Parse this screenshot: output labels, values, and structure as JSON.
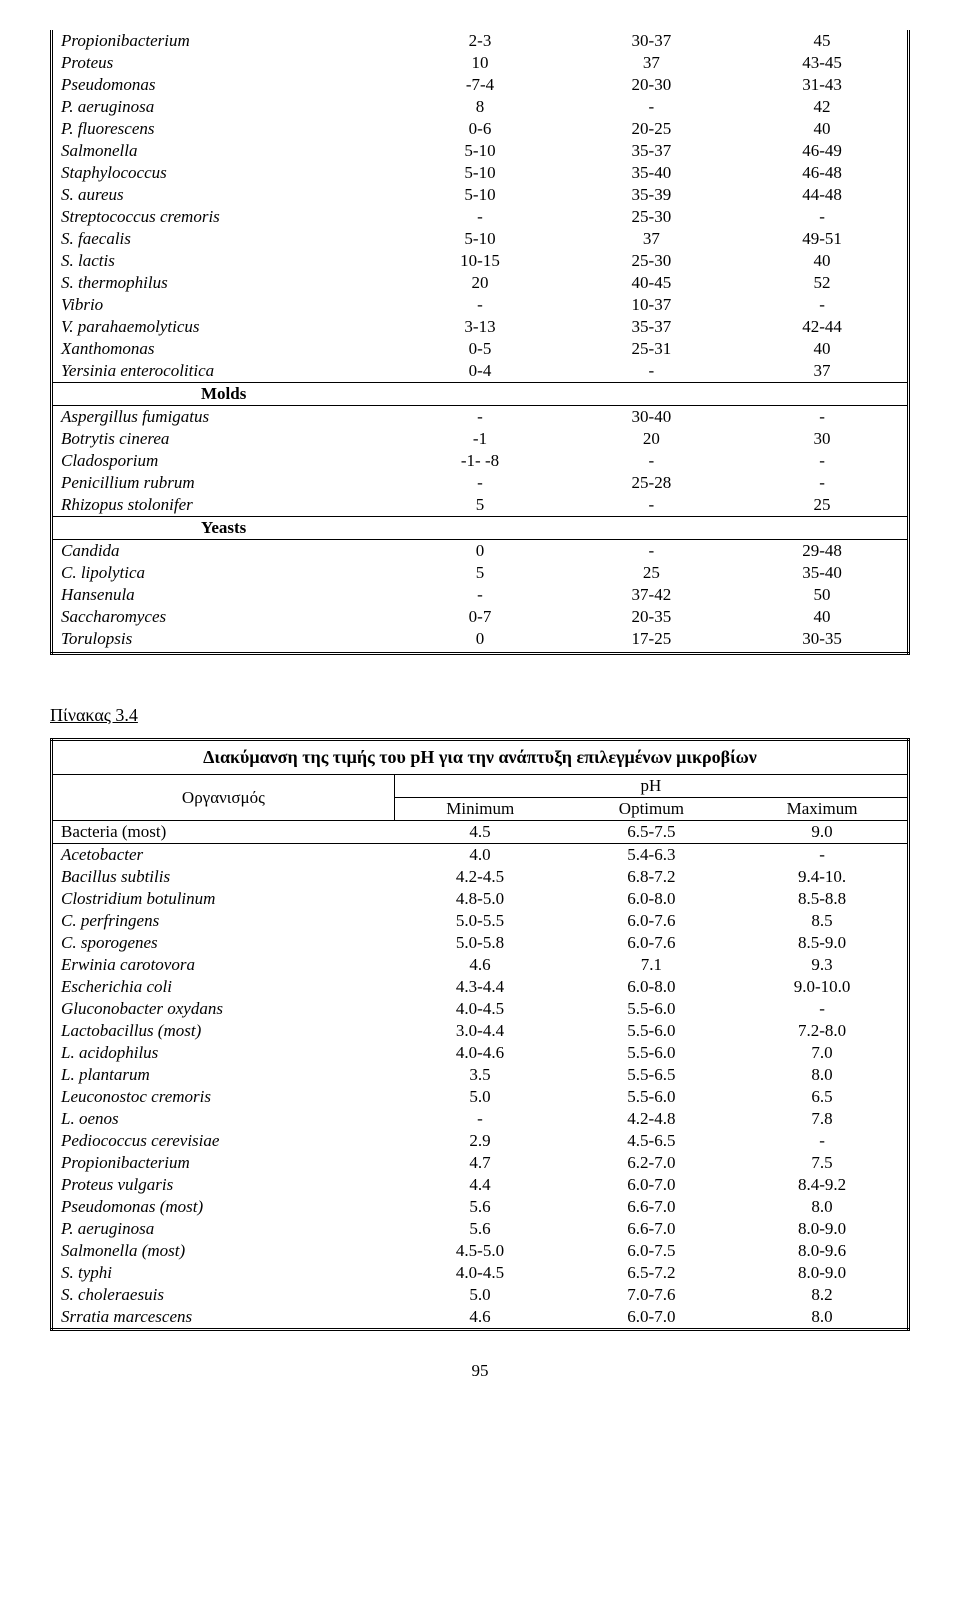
{
  "table1": {
    "rows_a": [
      {
        "name": "Propionibacterium",
        "c2": "2-3",
        "c3": "30-37",
        "c4": "45",
        "it": true
      },
      {
        "name": "Proteus",
        "c2": "10",
        "c3": "37",
        "c4": "43-45",
        "it": true
      },
      {
        "name": "Pseudomonas",
        "c2": "-7-4",
        "c3": "20-30",
        "c4": "31-43",
        "it": true
      },
      {
        "name": "P. aeruginosa",
        "c2": "8",
        "c3": "-",
        "c4": "42",
        "it": true
      },
      {
        "name": "P. fluorescens",
        "c2": "0-6",
        "c3": "20-25",
        "c4": "40",
        "it": true
      },
      {
        "name": "Salmonella",
        "c2": "5-10",
        "c3": "35-37",
        "c4": "46-49",
        "it": true
      },
      {
        "name": "Staphylococcus",
        "c2": "5-10",
        "c3": "35-40",
        "c4": "46-48",
        "it": true
      },
      {
        "name": "S. aureus",
        "c2": "5-10",
        "c3": "35-39",
        "c4": "44-48",
        "it": true
      },
      {
        "name": "Streptococcus cremoris",
        "c2": "-",
        "c3": "25-30",
        "c4": "-",
        "it": true
      },
      {
        "name": "S. faecalis",
        "c2": "5-10",
        "c3": "37",
        "c4": "49-51",
        "it": true
      },
      {
        "name": "S. lactis",
        "c2": "10-15",
        "c3": "25-30",
        "c4": "40",
        "it": true
      },
      {
        "name": "S. thermophilus",
        "c2": "20",
        "c3": "40-45",
        "c4": "52",
        "it": true
      },
      {
        "name": "Vibrio",
        "c2": "-",
        "c3": "10-37",
        "c4": "-",
        "it": true
      },
      {
        "name": "V. parahaemolyticus",
        "c2": "3-13",
        "c3": "35-37",
        "c4": "42-44",
        "it": true
      },
      {
        "name": "Xanthomonas",
        "c2": "0-5",
        "c3": "25-31",
        "c4": "40",
        "it": true
      },
      {
        "name": "Yersinia enterocolitica",
        "c2": "0-4",
        "c3": "-",
        "c4": "37",
        "it": true
      }
    ],
    "sec1": "Molds",
    "rows_b": [
      {
        "name": "Aspergillus fumigatus",
        "c2": "-",
        "c3": "30-40",
        "c4": "-",
        "it": true
      },
      {
        "name": "Botrytis cinerea",
        "c2": "-1",
        "c3": "20",
        "c4": "30",
        "it": true
      },
      {
        "name": "Cladosporium",
        "c2": "-1- -8",
        "c3": "-",
        "c4": "-",
        "it": true
      },
      {
        "name": "Penicillium rubrum",
        "c2": "-",
        "c3": "25-28",
        "c4": "-",
        "it": true
      },
      {
        "name": "Rhizopus stolonifer",
        "c2": "5",
        "c3": "-",
        "c4": "25",
        "it": true
      }
    ],
    "sec2": "Yeasts",
    "rows_c": [
      {
        "name": "Candida",
        "c2": "0",
        "c3": "-",
        "c4": "29-48",
        "it": true
      },
      {
        "name": "C. lipolytica",
        "c2": "5",
        "c3": "25",
        "c4": "35-40",
        "it": true
      },
      {
        "name": "Hansenula",
        "c2": "-",
        "c3": "37-42",
        "c4": "50",
        "it": true
      },
      {
        "name": "Saccharomyces",
        "c2": "0-7",
        "c3": "20-35",
        "c4": "40",
        "it": true
      },
      {
        "name": "Torulopsis",
        "c2": "0",
        "c3": "17-25",
        "c4": "30-35",
        "it": true
      }
    ]
  },
  "caption": "Πίνακας 3.4",
  "table2": {
    "title": "Διακύμανση της τιμής του pH για την ανάπτυξη επιλεγμένων μικροβίων",
    "org_label": "Οργανισμός",
    "ph_label": "pH",
    "cols": {
      "min": "Minimum",
      "opt": "Optimum",
      "max": "Maximum"
    },
    "first": {
      "name": "Bacteria (most)",
      "min": "4.5",
      "opt": "6.5-7.5",
      "max": "9.0",
      "it": false
    },
    "rows": [
      {
        "name": "Acetobacter",
        "min": "4.0",
        "opt": "5.4-6.3",
        "max": "-",
        "it": true
      },
      {
        "name": "Bacillus subtilis",
        "min": "4.2-4.5",
        "opt": "6.8-7.2",
        "max": "9.4-10.",
        "it": true
      },
      {
        "name": "Clostridium botulinum",
        "min": "4.8-5.0",
        "opt": "6.0-8.0",
        "max": "8.5-8.8",
        "it": true
      },
      {
        "name": "C. perfringens",
        "min": "5.0-5.5",
        "opt": "6.0-7.6",
        "max": "8.5",
        "it": true
      },
      {
        "name": "C. sporogenes",
        "min": "5.0-5.8",
        "opt": "6.0-7.6",
        "max": "8.5-9.0",
        "it": true
      },
      {
        "name": "Erwinia carotovora",
        "min": "4.6",
        "opt": "7.1",
        "max": "9.3",
        "it": true
      },
      {
        "name": "Escherichia coli",
        "min": "4.3-4.4",
        "opt": "6.0-8.0",
        "max": "9.0-10.0",
        "it": true
      },
      {
        "name": "Gluconobacter oxydans",
        "min": "4.0-4.5",
        "opt": "5.5-6.0",
        "max": "-",
        "it": true
      },
      {
        "name": "Lactobacillus (most)",
        "min": "3.0-4.4",
        "opt": "5.5-6.0",
        "max": "7.2-8.0",
        "it": true
      },
      {
        "name": "L. acidophilus",
        "min": "4.0-4.6",
        "opt": "5.5-6.0",
        "max": "7.0",
        "it": true
      },
      {
        "name": "L. plantarum",
        "min": "3.5",
        "opt": "5.5-6.5",
        "max": "8.0",
        "it": true
      },
      {
        "name": "Leuconostoc cremoris",
        "min": "5.0",
        "opt": "5.5-6.0",
        "max": "6.5",
        "it": true
      },
      {
        "name": "L. oenos",
        "min": "-",
        "opt": "4.2-4.8",
        "max": "7.8",
        "it": true
      },
      {
        "name": "Pediococcus cerevisiae",
        "min": "2.9",
        "opt": "4.5-6.5",
        "max": "-",
        "it": true
      },
      {
        "name": "Propionibacterium",
        "min": "4.7",
        "opt": "6.2-7.0",
        "max": "7.5",
        "it": true
      },
      {
        "name": "Proteus vulgaris",
        "min": "4.4",
        "opt": "6.0-7.0",
        "max": "8.4-9.2",
        "it": true
      },
      {
        "name": "Pseudomonas (most)",
        "min": "5.6",
        "opt": "6.6-7.0",
        "max": "8.0",
        "it": true
      },
      {
        "name": "P. aeruginosa",
        "min": "5.6",
        "opt": "6.6-7.0",
        "max": "8.0-9.0",
        "it": true
      },
      {
        "name": "Salmonella (most)",
        "min": "4.5-5.0",
        "opt": "6.0-7.5",
        "max": "8.0-9.6",
        "it": true
      },
      {
        "name": "S. typhi",
        "min": "4.0-4.5",
        "opt": "6.5-7.2",
        "max": "8.0-9.0",
        "it": true
      },
      {
        "name": "S. choleraesuis",
        "min": "5.0",
        "opt": "7.0-7.6",
        "max": "8.2",
        "it": true
      },
      {
        "name": "Srratia marcescens",
        "min": "4.6",
        "opt": "6.0-7.0",
        "max": "8.0",
        "it": true
      }
    ]
  },
  "pagenum": "95"
}
